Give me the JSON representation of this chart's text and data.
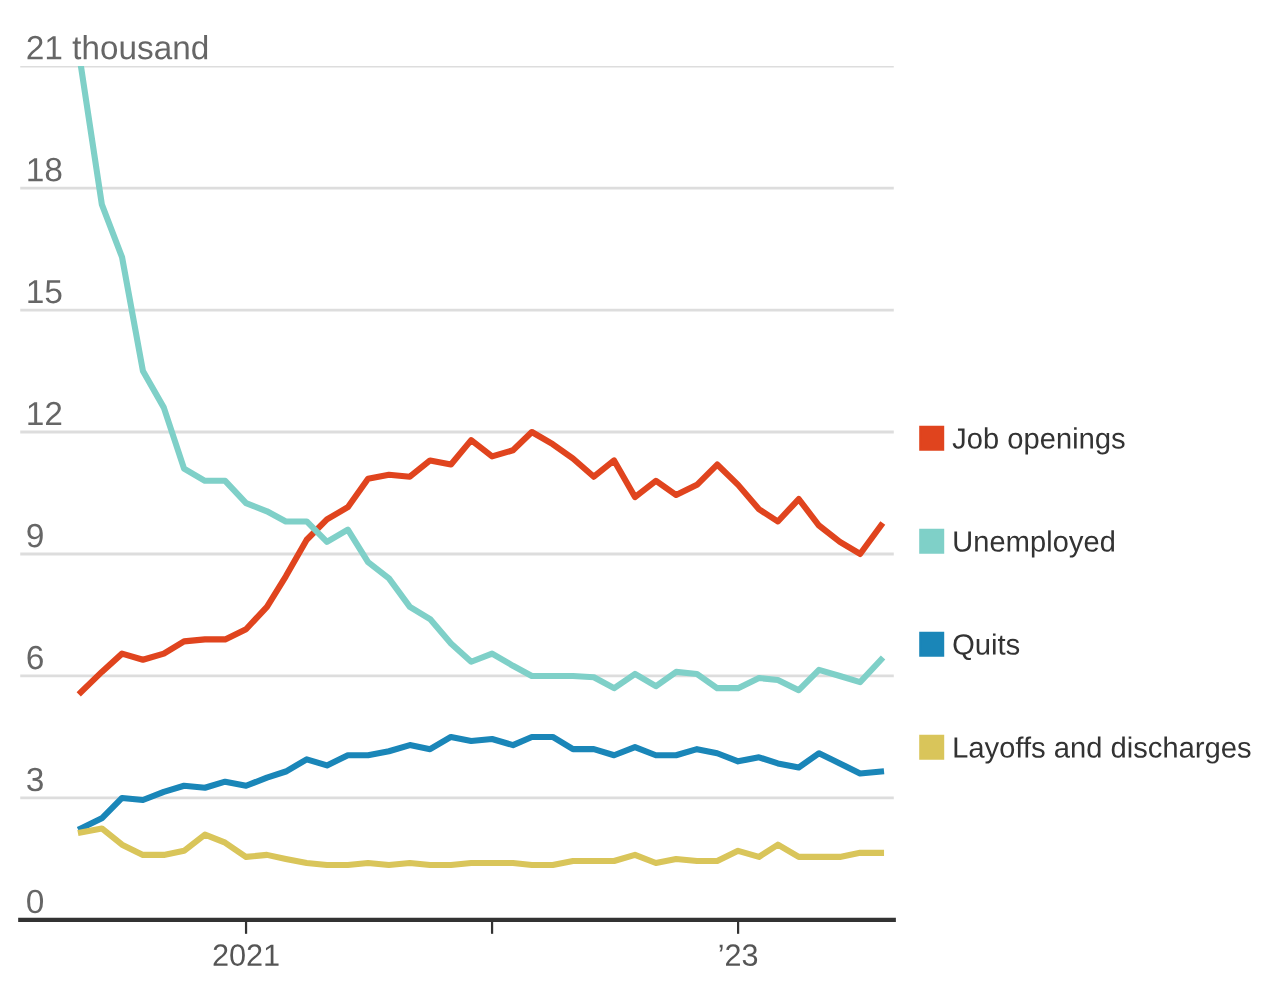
{
  "chart_data": {
    "type": "line",
    "x": [
      "2020-05",
      "2020-06",
      "2020-07",
      "2020-08",
      "2020-09",
      "2020-10",
      "2020-11",
      "2020-12",
      "2021-01",
      "2021-02",
      "2021-03",
      "2021-04",
      "2021-05",
      "2021-06",
      "2021-07",
      "2021-08",
      "2021-09",
      "2021-10",
      "2021-11",
      "2021-12",
      "2022-01",
      "2022-02",
      "2022-03",
      "2022-04",
      "2022-05",
      "2022-06",
      "2022-07",
      "2022-08",
      "2022-09",
      "2022-10",
      "2022-11",
      "2022-12",
      "2023-01",
      "2023-02",
      "2023-03",
      "2023-04",
      "2023-05",
      "2023-06",
      "2023-07",
      "2023-08"
    ],
    "series": [
      {
        "name": "Job openings",
        "color": "#e0441e",
        "values": [
          5.6,
          6.1,
          6.55,
          6.4,
          6.55,
          6.85,
          6.9,
          6.9,
          7.15,
          7.7,
          8.45,
          9.35,
          9.85,
          10.15,
          10.85,
          10.95,
          10.9,
          11.3,
          11.2,
          11.8,
          11.4,
          11.55,
          12.0,
          11.7,
          11.35,
          10.9,
          11.3,
          10.4,
          10.8,
          10.45,
          10.7,
          11.2,
          10.7,
          10.1,
          9.8,
          10.35,
          9.7,
          9.3,
          9.0,
          9.7
        ]
      },
      {
        "name": "Unemployed",
        "color": "#7fd0c8",
        "values": [
          21.0,
          17.6,
          16.3,
          13.5,
          12.6,
          11.1,
          10.8,
          10.8,
          10.25,
          10.05,
          9.8,
          9.8,
          9.3,
          9.6,
          8.8,
          8.4,
          7.7,
          7.4,
          6.8,
          6.35,
          6.55,
          6.25,
          6.0,
          6.0,
          6.0,
          5.97,
          5.7,
          6.05,
          5.75,
          6.1,
          6.05,
          5.7,
          5.7,
          5.95,
          5.9,
          5.65,
          6.15,
          6.0,
          5.85,
          6.4
        ]
      },
      {
        "name": "Quits",
        "color": "#1a86b8",
        "values": [
          2.25,
          2.5,
          3.0,
          2.95,
          3.15,
          3.3,
          3.25,
          3.4,
          3.3,
          3.5,
          3.65,
          3.95,
          3.8,
          4.05,
          4.05,
          4.15,
          4.3,
          4.2,
          4.5,
          4.4,
          4.45,
          4.3,
          4.5,
          4.5,
          4.2,
          4.2,
          4.05,
          4.25,
          4.05,
          4.05,
          4.2,
          4.1,
          3.9,
          4.0,
          3.85,
          3.75,
          4.1,
          3.85,
          3.6,
          3.65
        ]
      },
      {
        "name": "Layoffs and discharges",
        "color": "#d9c55a",
        "values": [
          2.15,
          2.25,
          1.85,
          1.6,
          1.6,
          1.7,
          2.1,
          1.9,
          1.55,
          1.6,
          1.5,
          1.4,
          1.35,
          1.35,
          1.4,
          1.35,
          1.4,
          1.35,
          1.35,
          1.4,
          1.4,
          1.4,
          1.35,
          1.35,
          1.45,
          1.45,
          1.45,
          1.6,
          1.4,
          1.5,
          1.45,
          1.45,
          1.7,
          1.55,
          1.85,
          1.55,
          1.55,
          1.55,
          1.65,
          1.65
        ]
      }
    ],
    "xlim": [
      "2020-02-01",
      "2023-08-20"
    ],
    "xticks": [
      {
        "value": "2021-01-01",
        "label": "2021"
      },
      {
        "value": "2022-01-01",
        "label": null
      },
      {
        "value": "2023-01-01",
        "label": "’23"
      }
    ],
    "ylim": [
      0,
      21
    ],
    "yticks": [
      0,
      3,
      6,
      9,
      12,
      15,
      18,
      {
        "value": 21,
        "label": "21 thousand"
      }
    ],
    "grid": "y",
    "legend": "right",
    "marker": "none",
    "line_style": "solid"
  }
}
